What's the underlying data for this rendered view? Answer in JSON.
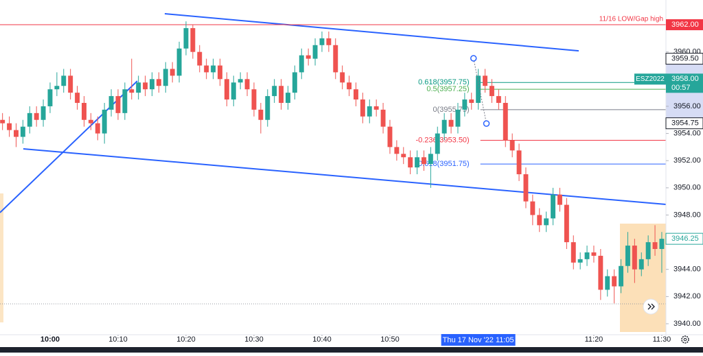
{
  "chart_data": {
    "type": "candlestick",
    "up_color": "#26a69a",
    "down_color": "#ef5350",
    "x": [
      -7,
      -6,
      -5,
      -4,
      -3,
      -2,
      -1,
      0,
      1,
      2,
      3,
      4,
      5,
      6,
      7,
      8,
      9,
      10,
      11,
      12,
      13,
      14,
      15,
      16,
      17,
      18,
      19,
      20,
      21,
      22,
      23,
      24,
      25,
      26,
      27,
      28,
      29,
      30,
      31,
      32,
      33,
      34,
      35,
      36,
      37,
      38,
      39,
      40,
      41,
      42,
      43,
      44,
      45,
      46,
      47,
      48,
      49,
      50,
      51,
      52,
      53,
      54,
      55,
      56,
      57,
      58,
      59,
      60,
      61,
      62,
      63,
      64,
      65,
      66,
      67,
      68,
      69,
      70,
      71,
      72,
      73,
      74,
      75,
      76,
      77,
      78,
      79,
      80,
      81,
      82,
      83,
      84,
      85,
      86,
      87,
      88,
      89,
      90
    ],
    "open": [
      3955.0,
      3954.75,
      3954.25,
      3953.75,
      3954.5,
      3955.5,
      3955.0,
      3956.0,
      3957.25,
      3957.5,
      3958.25,
      3957.0,
      3956.25,
      3955.0,
      3954.75,
      3954.0,
      3955.75,
      3956.75,
      3955.5,
      3957.25,
      3957.0,
      3957.75,
      3957.25,
      3958.0,
      3957.5,
      3958.75,
      3958.25,
      3960.25,
      3961.75,
      3960.0,
      3959.0,
      3958.5,
      3959.0,
      3958.0,
      3956.5,
      3957.75,
      3958.0,
      3957.25,
      3955.75,
      3955.0,
      3956.75,
      3957.5,
      3956.25,
      3957.0,
      3958.5,
      3959.75,
      3959.5,
      3960.5,
      3961.0,
      3960.5,
      3958.5,
      3957.75,
      3957.25,
      3956.5,
      3955.25,
      3956.0,
      3955.75,
      3954.5,
      3953.0,
      3952.5,
      3952.25,
      3951.5,
      3952.25,
      3951.75,
      3952.5,
      3954.0,
      3955.0,
      3954.5,
      3955.75,
      3956.5,
      3956.25,
      3958.25,
      3957.5,
      3956.75,
      3956.25,
      3953.5,
      3952.75,
      3951.0,
      3949.0,
      3948.0,
      3947.25,
      3947.75,
      3949.5,
      3948.75,
      3946.0,
      3944.5,
      3944.75,
      3945.25,
      3945.0,
      3942.5,
      3943.5,
      3942.75,
      3944.25,
      3945.75,
      3944.0,
      3944.75,
      3946.0,
      3945.5
    ],
    "high": [
      3955.5,
      3955.25,
      3954.75,
      3955.0,
      3956.0,
      3956.0,
      3956.5,
      3957.75,
      3958.5,
      3958.75,
      3958.75,
      3957.5,
      3956.75,
      3955.5,
      3955.25,
      3956.25,
      3957.25,
      3957.25,
      3957.75,
      3959.5,
      3958.25,
      3958.25,
      3958.5,
      3958.5,
      3959.25,
      3959.25,
      3960.75,
      3962.25,
      3962.0,
      3960.5,
      3959.5,
      3959.5,
      3959.5,
      3958.5,
      3958.25,
      3958.5,
      3958.5,
      3957.75,
      3956.25,
      3957.25,
      3958.0,
      3958.0,
      3957.5,
      3959.0,
      3960.25,
      3960.25,
      3961.0,
      3961.5,
      3961.5,
      3961.0,
      3959.0,
      3958.25,
      3957.75,
      3957.0,
      3956.5,
      3956.5,
      3956.25,
      3955.0,
      3953.5,
      3953.0,
      3952.75,
      3952.75,
      3952.75,
      3953.0,
      3954.5,
      3955.5,
      3955.5,
      3956.25,
      3957.0,
      3957.0,
      3958.75,
      3958.75,
      3958.0,
      3957.25,
      3956.75,
      3954.0,
      3953.25,
      3951.5,
      3949.5,
      3948.5,
      3948.25,
      3950.0,
      3950.0,
      3949.25,
      3946.5,
      3945.25,
      3945.75,
      3945.75,
      3945.5,
      3944.0,
      3944.0,
      3944.75,
      3946.75,
      3946.25,
      3945.25,
      3946.5,
      3947.25,
      3946.75
    ],
    "low": [
      3954.25,
      3953.75,
      3953.0,
      3953.25,
      3954.0,
      3954.5,
      3954.5,
      3955.5,
      3956.75,
      3957.0,
      3956.5,
      3955.75,
      3954.5,
      3954.25,
      3953.5,
      3953.25,
      3955.25,
      3955.0,
      3955.0,
      3956.5,
      3956.5,
      3956.75,
      3956.75,
      3957.0,
      3957.0,
      3957.75,
      3957.75,
      3959.75,
      3959.5,
      3958.5,
      3958.0,
      3958.0,
      3957.5,
      3956.0,
      3956.0,
      3957.25,
      3956.75,
      3955.25,
      3954.0,
      3954.5,
      3956.25,
      3955.75,
      3955.75,
      3956.5,
      3958.0,
      3959.0,
      3959.0,
      3960.0,
      3960.0,
      3958.0,
      3957.25,
      3956.75,
      3956.0,
      3954.75,
      3954.75,
      3955.25,
      3954.0,
      3952.5,
      3952.0,
      3951.75,
      3951.0,
      3951.0,
      3951.25,
      3950.0,
      3952.0,
      3953.5,
      3954.0,
      3954.0,
      3955.25,
      3955.75,
      3955.75,
      3957.0,
      3956.25,
      3955.75,
      3953.0,
      3952.25,
      3950.5,
      3948.5,
      3947.25,
      3946.75,
      3946.75,
      3947.25,
      3948.25,
      3945.5,
      3944.0,
      3944.0,
      3944.25,
      3944.5,
      3941.75,
      3942.0,
      3941.5,
      3942.25,
      3943.75,
      3943.0,
      3943.5,
      3944.25,
      3945.0,
      3943.75
    ],
    "close": [
      3954.75,
      3954.25,
      3953.75,
      3954.5,
      3955.5,
      3955.0,
      3956.0,
      3957.25,
      3957.5,
      3958.25,
      3957.0,
      3956.25,
      3955.0,
      3954.75,
      3954.0,
      3955.75,
      3956.75,
      3955.5,
      3957.25,
      3957.0,
      3957.75,
      3957.25,
      3958.0,
      3957.5,
      3958.75,
      3958.25,
      3960.25,
      3961.75,
      3960.0,
      3959.0,
      3958.5,
      3959.0,
      3958.0,
      3956.5,
      3957.75,
      3958.0,
      3957.25,
      3955.75,
      3955.0,
      3956.75,
      3957.5,
      3956.25,
      3957.0,
      3958.5,
      3959.75,
      3959.5,
      3960.5,
      3961.0,
      3960.5,
      3958.5,
      3957.75,
      3957.25,
      3956.5,
      3955.25,
      3956.0,
      3955.75,
      3954.5,
      3953.0,
      3952.5,
      3952.25,
      3951.5,
      3952.25,
      3951.75,
      3952.5,
      3954.0,
      3955.0,
      3954.5,
      3955.75,
      3956.5,
      3956.25,
      3958.25,
      3957.5,
      3956.75,
      3956.25,
      3953.5,
      3952.75,
      3951.0,
      3949.0,
      3948.0,
      3947.25,
      3947.75,
      3949.5,
      3948.75,
      3946.0,
      3944.5,
      3944.75,
      3945.25,
      3945.0,
      3942.5,
      3943.5,
      3942.75,
      3944.25,
      3945.75,
      3944.0,
      3944.75,
      3946.0,
      3945.5,
      3946.25
    ],
    "xlim": [
      -7.37,
      90.61
    ],
    "ylim": [
      3939.09,
      3963.82
    ],
    "xticks": [
      {
        "value": 0,
        "label": "10:00"
      },
      {
        "value": 10,
        "label": "10:10"
      },
      {
        "value": 20,
        "label": "10:20"
      },
      {
        "value": 30,
        "label": "10:30"
      },
      {
        "value": 40,
        "label": "10:40"
      },
      {
        "value": 50,
        "label": "10:50"
      },
      {
        "value": 80,
        "label": "11:20"
      },
      {
        "value": 90,
        "label": "11:30"
      }
    ],
    "yticks": [
      {
        "value": 3940,
        "label": "3940.00"
      },
      {
        "value": 3942,
        "label": "3942.00"
      },
      {
        "value": 3944,
        "label": "3944.00"
      },
      {
        "value": 3948,
        "label": "3948.00"
      },
      {
        "value": 3950,
        "label": "3950.00"
      },
      {
        "value": 3952,
        "label": "3952.00"
      },
      {
        "value": 3954,
        "label": "3954.00"
      },
      {
        "value": 3956,
        "label": "3956.00"
      },
      {
        "value": 3960,
        "label": "3960.00"
      }
    ],
    "crosshair": {
      "value": 63,
      "label": "Thu 17 Nov '22  11:05"
    },
    "horizontal_line": {
      "value": 3962,
      "label": "3962.00",
      "name": "11/16 LOW/Gap high",
      "color": "#f23645"
    },
    "price_tags": [
      {
        "value": 3959.5,
        "label": "3959.50"
      },
      {
        "value": 3954.75,
        "label": "3954.75"
      },
      {
        "value": 3946.25,
        "label": "3946.25"
      }
    ],
    "symbol_tag": {
      "value": 3958,
      "label": "3958.00",
      "symbol": "ESZ2022",
      "countdown": "00:57",
      "color": "#26a69a"
    },
    "fib_points": {
      "x": [
        62.3,
        64.2
      ],
      "y": [
        3959.53,
        3954.73
      ]
    },
    "fib_levels": [
      {
        "value": 3957.75,
        "label": "0.618(3957.75)",
        "color": "#089981"
      },
      {
        "value": 3957.25,
        "label": "0.5(3957.25)",
        "color": "#4caf50"
      },
      {
        "value": 3955.75,
        "label": "0(3955.75)",
        "color": "#787b86"
      },
      {
        "value": 3953.5,
        "label": "-0.236(3953.50)",
        "color": "#f23645"
      },
      {
        "value": 3951.75,
        "label": "-0.618(3951.75)",
        "color": "#2962ff"
      }
    ],
    "trend_lines": [
      {
        "x": [
          16.87,
          77.78
        ],
        "y": [
          3962.81,
          3960.08
        ]
      },
      {
        "x": [
          -3.94,
          90.61
        ],
        "y": [
          3952.87,
          3948.78
        ]
      },
      {
        "x": [
          -7.37,
          12.83
        ],
        "y": [
          3948.18,
          3957.86
        ]
      }
    ],
    "trend_color": "#2962ff"
  }
}
